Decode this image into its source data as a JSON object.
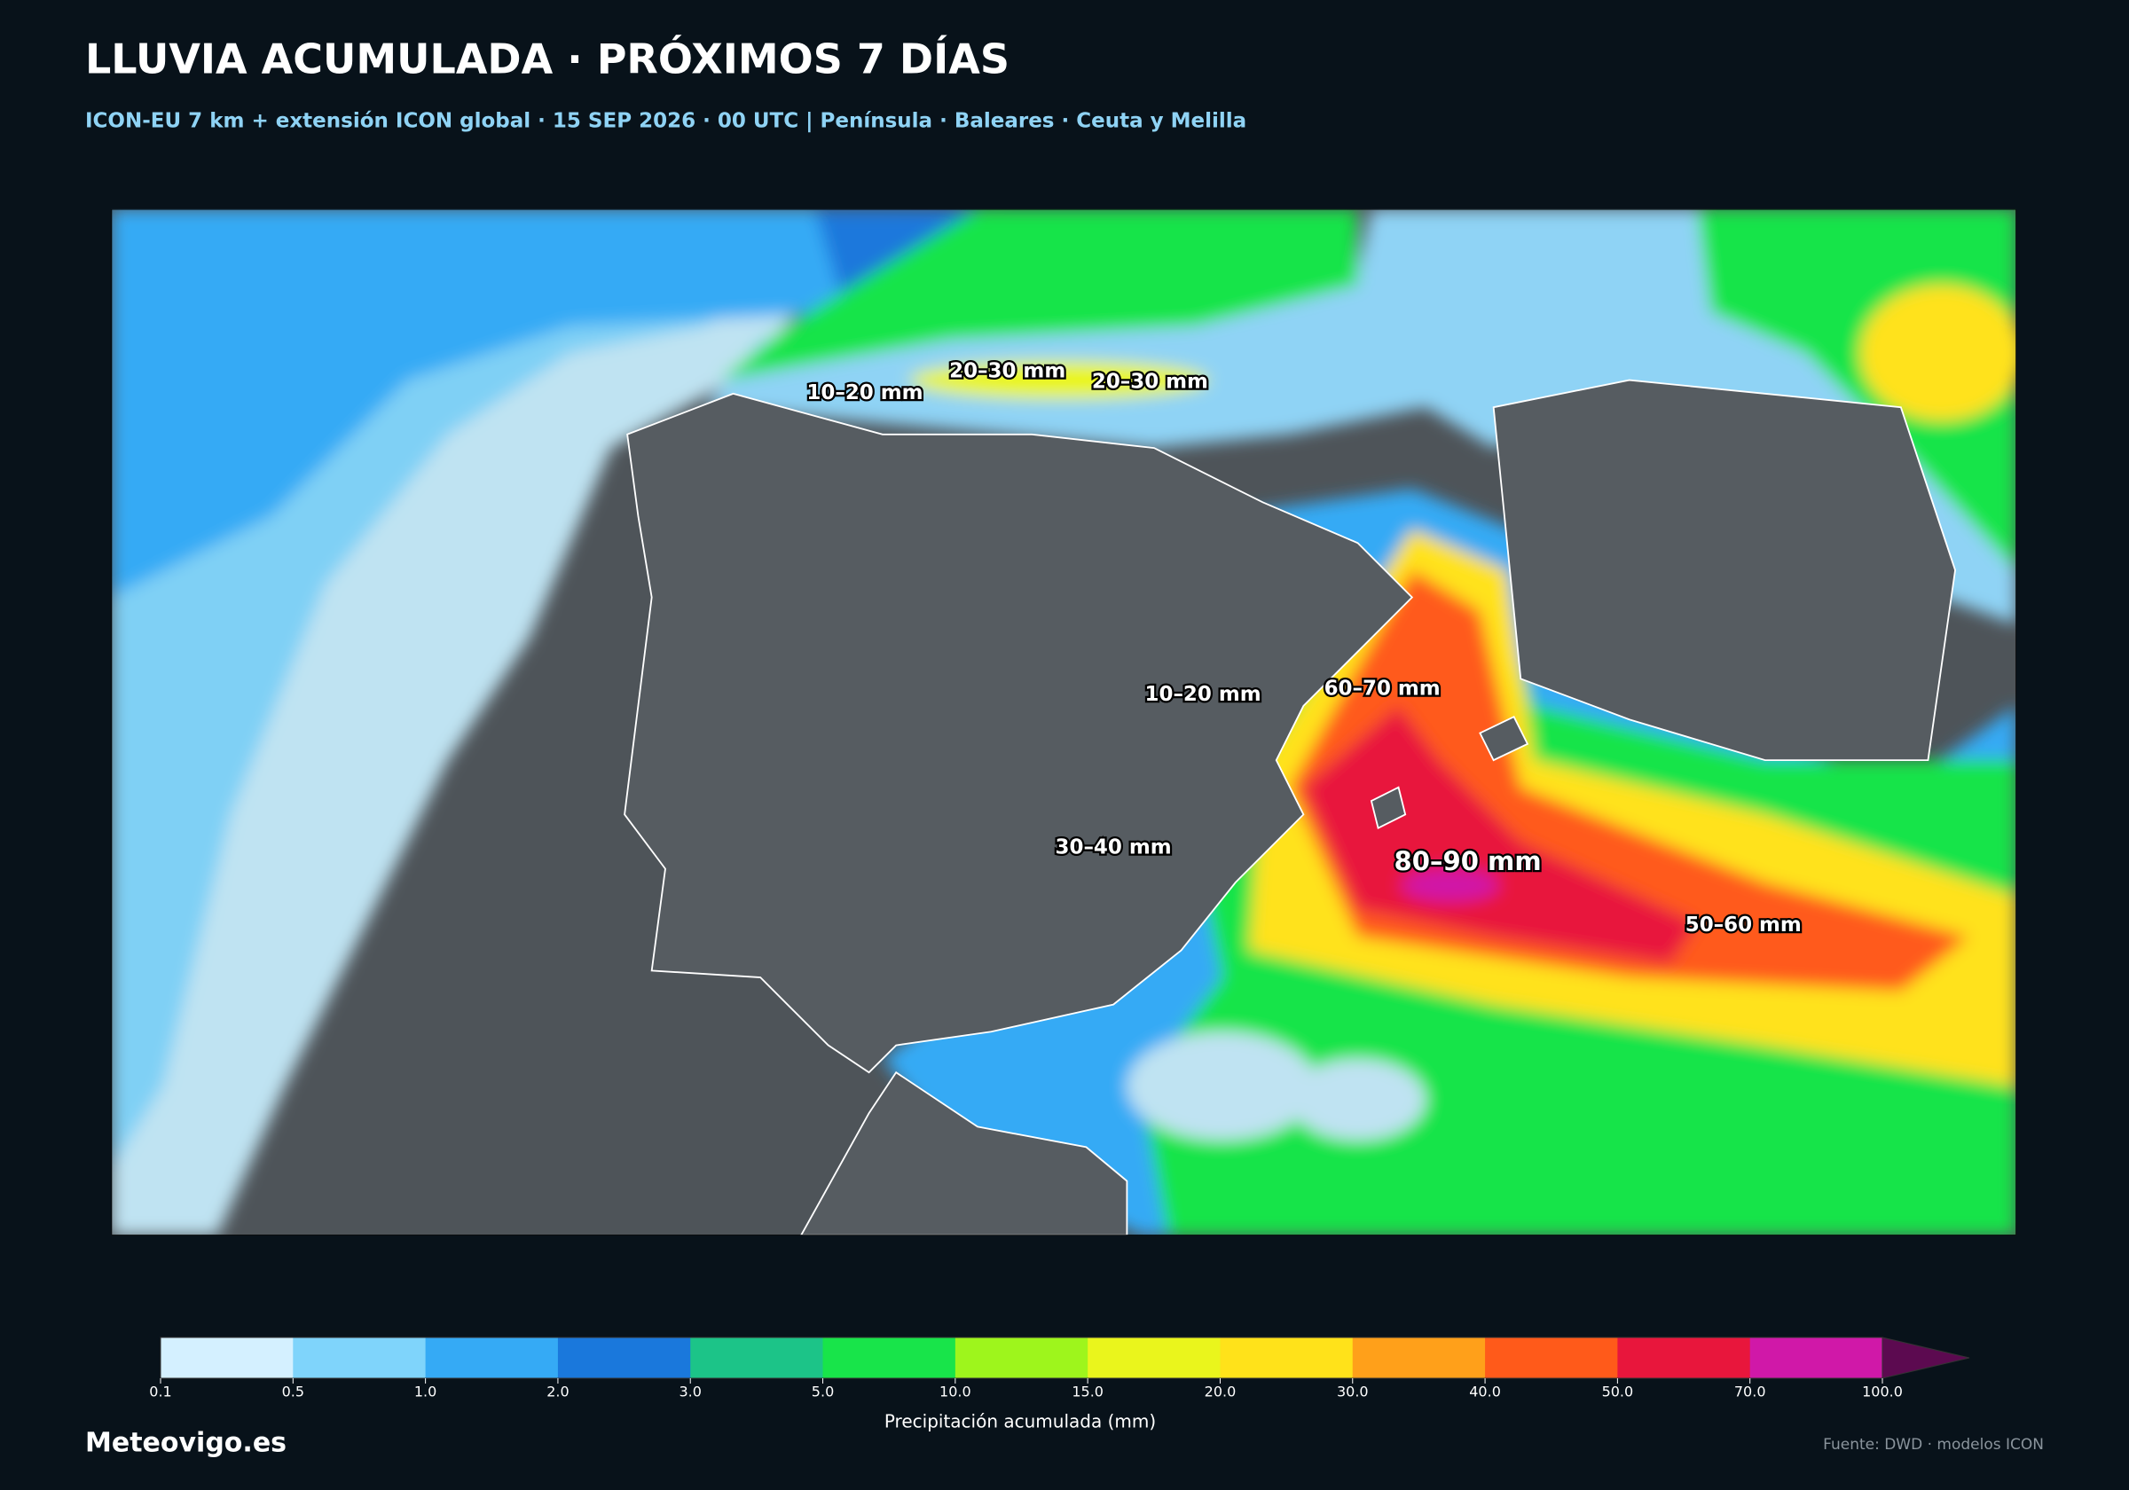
{
  "header": {
    "title": "LLUVIA ACUMULADA · PRÓXIMOS 7 DÍAS",
    "subtitle": "ICON-EU 7 km + extensión ICON global · 15 SEP 2026 · 00 UTC | Península · Baleares · Ceuta y Melilla"
  },
  "map": {
    "labels": [
      "10–20 mm",
      "20–30 mm",
      "20–30 mm",
      "10–20 mm",
      "60–70 mm",
      "30–40 mm",
      "80–90 mm",
      "50–60 mm"
    ]
  },
  "colorbar": {
    "levels": [
      0.1,
      0.5,
      {
        "value": 1,
        "label": "1.0"
      },
      {
        "value": 2,
        "label": "2.0"
      },
      {
        "value": 3,
        "label": "3.0"
      },
      {
        "value": 5,
        "label": "5.0"
      },
      {
        "value": 10,
        "label": "10.0"
      },
      {
        "value": 15,
        "label": "15.0"
      },
      {
        "value": 20,
        "label": "20.0"
      },
      {
        "value": 30,
        "label": "30.0"
      },
      {
        "value": 40,
        "label": "40.0"
      },
      {
        "value": 50,
        "label": "50.0"
      },
      {
        "value": 70,
        "label": "70.0"
      },
      {
        "value": 100,
        "label": "100.0"
      }
    ],
    "colors": [
      "#d4f0ff",
      "#7fd4fb",
      "#35aaf5",
      "#1a78dc",
      "#1cc488",
      "#18e44a",
      "#9ef51c",
      "#eaf51c",
      "#ffe21a",
      "#ffa01a",
      "#ff5a1a",
      "#e8163c",
      "#d018a8"
    ],
    "extend_color": "#5c0a50",
    "label": "Precipitación acumulada (mm)"
  },
  "footer": {
    "brand": "Meteovigo.es",
    "source": "Fuente: DWD · modelos ICON"
  }
}
